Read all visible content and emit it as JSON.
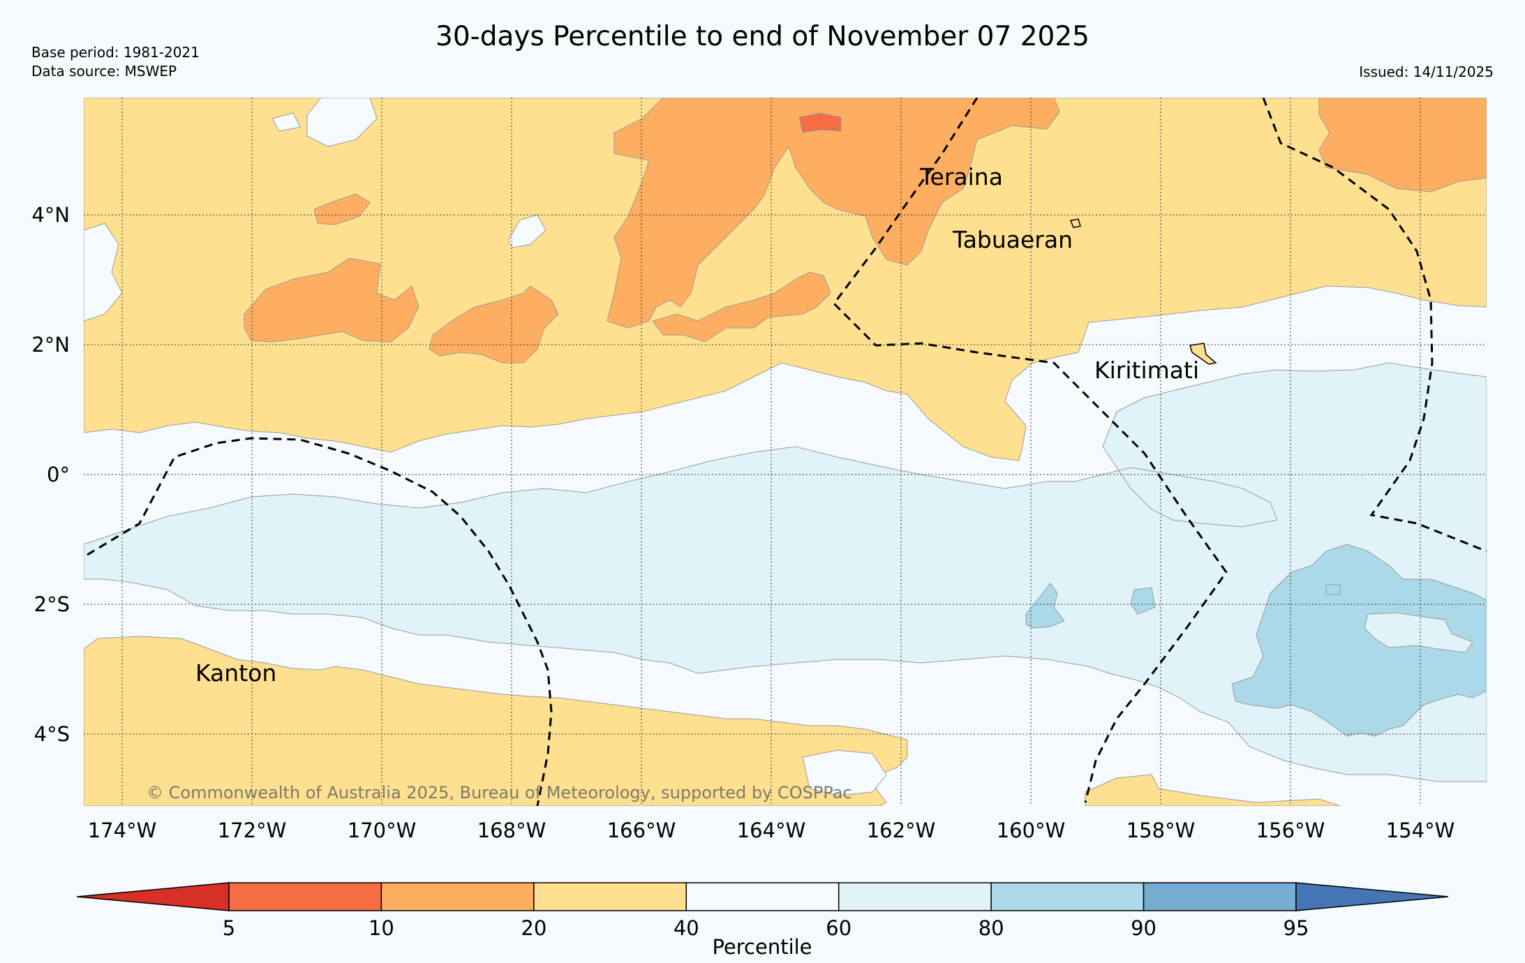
{
  "header": {
    "title": "30-days Percentile to end of November 07 2025",
    "base_period": "Base period: 1981-2021",
    "data_source": "Data source: MSWEP",
    "issued": "Issued: 14/11/2025"
  },
  "map": {
    "lat_labels": [
      "4°N",
      "2°N",
      "0°",
      "2°S",
      "4°S"
    ],
    "lon_labels": [
      "174°W",
      "172°W",
      "170°W",
      "168°W",
      "166°W",
      "164°W",
      "162°W",
      "160°W",
      "158°W",
      "156°W",
      "154°W"
    ],
    "places": {
      "teraina": "Teraina",
      "tabuaeran": "Tabuaeran",
      "kiritimati": "Kiritimati",
      "kanton": "Kanton"
    },
    "copyright": "© Commonwealth of Australia 2025, Bureau of Meteorology, supported by COSPPac",
    "zone_colors": {
      "below_10": "#f46d43",
      "p10_20": "#fdae61",
      "p20_40": "#fee090",
      "p40_60": "#f5fafd",
      "p60_80": "#e0f3f8",
      "p80_90": "#abd9e9"
    }
  },
  "colorbar": {
    "ticks": [
      "5",
      "10",
      "20",
      "40",
      "60",
      "80",
      "90",
      "95"
    ],
    "label": "Percentile",
    "colors": [
      "#d73027",
      "#f46d43",
      "#fdae61",
      "#fee090",
      "#f5fafd",
      "#e0f3f8",
      "#abd9e9",
      "#74add1",
      "#4575b4"
    ]
  }
}
